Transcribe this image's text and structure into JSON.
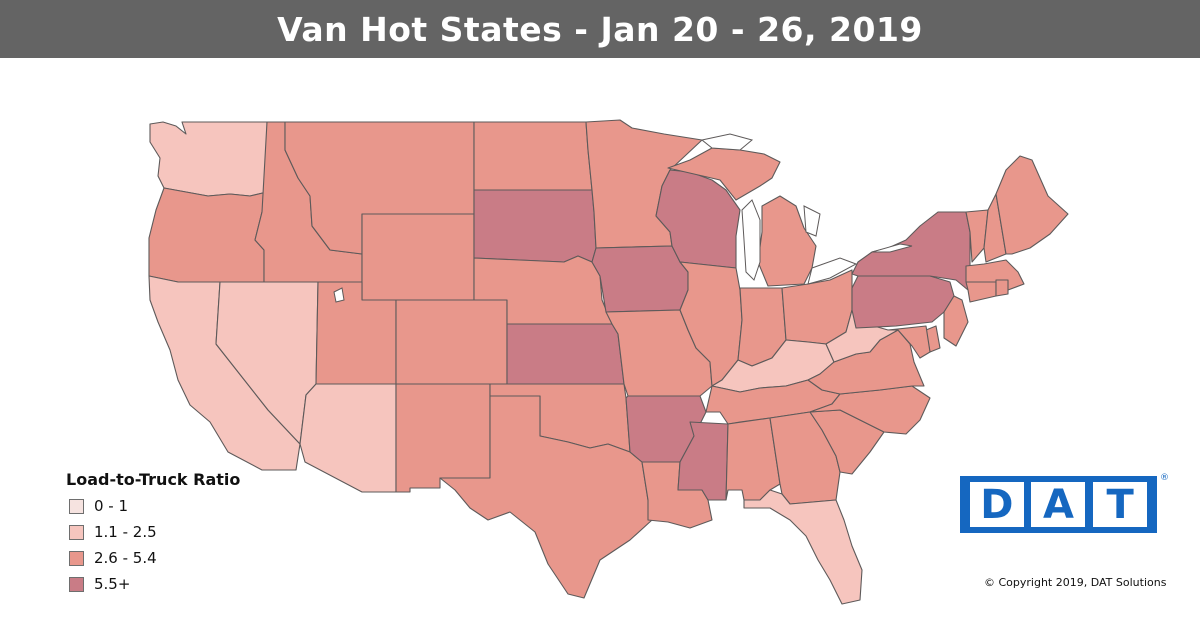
{
  "header": {
    "title": "Van Hot States - Jan 20 - 26, 2019"
  },
  "legend": {
    "title": "Load-to-Truck Ratio",
    "items": [
      {
        "label": "0 - 1",
        "color": "#f6e3e0"
      },
      {
        "label": "1.1 - 2.5",
        "color": "#f6c5be"
      },
      {
        "label": "2.6 - 5.4",
        "color": "#e8978c"
      },
      {
        "label": "5.5+",
        "color": "#c97c86"
      }
    ]
  },
  "states": {
    "WA": 1,
    "OR": 2,
    "CA": 1,
    "NV": 1,
    "ID": 2,
    "MT": 2,
    "WY": 2,
    "UT": 2,
    "AZ": 1,
    "CO": 2,
    "NM": 2,
    "ND": 2,
    "SD": 3,
    "NE": 2,
    "KS": 3,
    "OK": 2,
    "TX": 2,
    "MN": 2,
    "IA": 3,
    "MO": 2,
    "AR": 3,
    "LA": 2,
    "WI": 3,
    "IL": 2,
    "MI": 2,
    "IN": 2,
    "OH": 2,
    "KY": 1,
    "TN": 2,
    "MS": 3,
    "AL": 2,
    "GA": 2,
    "FL": 1,
    "SC": 2,
    "NC": 2,
    "VA": 2,
    "WV": 1,
    "PA": 3,
    "NY": 3,
    "VT": 2,
    "NH": 2,
    "ME": 2,
    "MA": 2,
    "CT": 2,
    "RI": 2,
    "NJ": 2,
    "DE": 2,
    "MD": 2
  },
  "logo": {
    "letters": [
      "D",
      "A",
      "T"
    ],
    "mark": "®",
    "brand_color": "#1567c0"
  },
  "footer": {
    "copyright": "© Copyright 2019, DAT Solutions"
  }
}
